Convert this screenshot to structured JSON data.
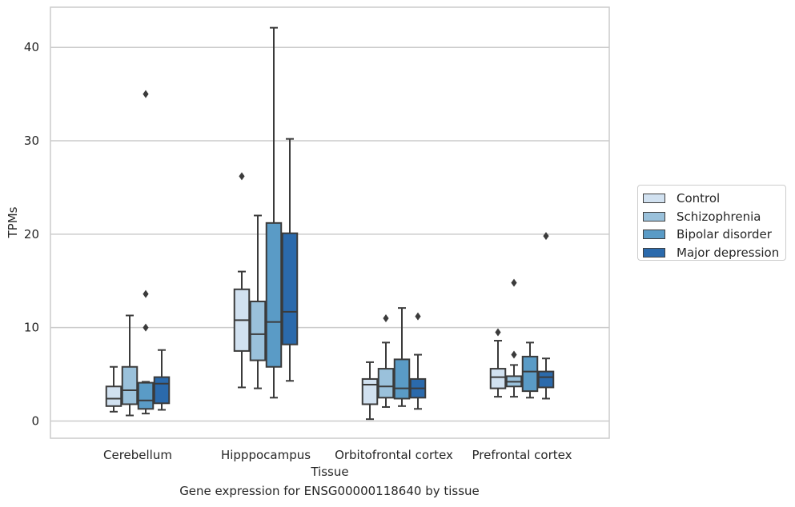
{
  "chart_data": {
    "type": "boxplot",
    "xlabel": "Tissue",
    "ylabel": "TPMs",
    "caption": "Gene expression for ENSG00000118640 by tissue",
    "ylim": [
      -1.8,
      44.5
    ],
    "yticks": [
      0,
      10,
      20,
      30,
      40
    ],
    "grid": "horizontal",
    "legend_position": "right",
    "categories": [
      "Cerebellum",
      "Hipppocampus",
      "Orbitofrontal cortex",
      "Prefrontal cortex"
    ],
    "series": [
      {
        "name": "Control",
        "color": "#d1e1f0",
        "boxes": [
          {
            "whisker_low": 1.0,
            "q1": 1.6,
            "median": 2.4,
            "q3": 3.7,
            "whisker_high": 5.8,
            "outliers": []
          },
          {
            "whisker_low": 3.6,
            "q1": 7.5,
            "median": 10.8,
            "q3": 14.1,
            "whisker_high": 16.0,
            "outliers": [
              26.2
            ]
          },
          {
            "whisker_low": 0.2,
            "q1": 1.8,
            "median": 3.9,
            "q3": 4.5,
            "whisker_high": 6.3,
            "outliers": []
          },
          {
            "whisker_low": 2.6,
            "q1": 3.5,
            "median": 4.7,
            "q3": 5.6,
            "whisker_high": 8.6,
            "outliers": [
              9.5
            ]
          }
        ]
      },
      {
        "name": "Schizophrenia",
        "color": "#9ac1db",
        "boxes": [
          {
            "whisker_low": 0.6,
            "q1": 1.8,
            "median": 3.3,
            "q3": 5.8,
            "whisker_high": 11.3,
            "outliers": []
          },
          {
            "whisker_low": 3.5,
            "q1": 6.5,
            "median": 9.3,
            "q3": 12.8,
            "whisker_high": 22.0,
            "outliers": []
          },
          {
            "whisker_low": 1.5,
            "q1": 2.5,
            "median": 3.7,
            "q3": 5.6,
            "whisker_high": 8.4,
            "outliers": [
              11.0
            ]
          },
          {
            "whisker_low": 2.6,
            "q1": 3.7,
            "median": 4.2,
            "q3": 4.8,
            "whisker_high": 6.0,
            "outliers": [
              7.1,
              14.8
            ]
          }
        ]
      },
      {
        "name": "Bipolar disorder",
        "color": "#5a9bc6",
        "boxes": [
          {
            "whisker_low": 0.8,
            "q1": 1.3,
            "median": 2.2,
            "q3": 4.1,
            "whisker_high": 4.2,
            "outliers": [
              10.0,
              13.6,
              35.0
            ]
          },
          {
            "whisker_low": 2.5,
            "q1": 5.8,
            "median": 10.6,
            "q3": 21.2,
            "whisker_high": 42.1,
            "outliers": []
          },
          {
            "whisker_low": 1.6,
            "q1": 2.4,
            "median": 3.5,
            "q3": 6.6,
            "whisker_high": 12.1,
            "outliers": []
          },
          {
            "whisker_low": 2.5,
            "q1": 3.2,
            "median": 5.3,
            "q3": 6.9,
            "whisker_high": 8.4,
            "outliers": []
          }
        ]
      },
      {
        "name": "Major depression",
        "color": "#2b6aac",
        "boxes": [
          {
            "whisker_low": 1.2,
            "q1": 1.9,
            "median": 4.0,
            "q3": 4.7,
            "whisker_high": 7.6,
            "outliers": []
          },
          {
            "whisker_low": 4.3,
            "q1": 8.2,
            "median": 11.7,
            "q3": 20.1,
            "whisker_high": 30.2,
            "outliers": []
          },
          {
            "whisker_low": 1.3,
            "q1": 2.5,
            "median": 3.5,
            "q3": 4.5,
            "whisker_high": 7.1,
            "outliers": [
              11.2
            ]
          },
          {
            "whisker_low": 2.4,
            "q1": 3.6,
            "median": 4.7,
            "q3": 5.3,
            "whisker_high": 6.7,
            "outliers": [
              19.8
            ]
          }
        ]
      }
    ]
  }
}
